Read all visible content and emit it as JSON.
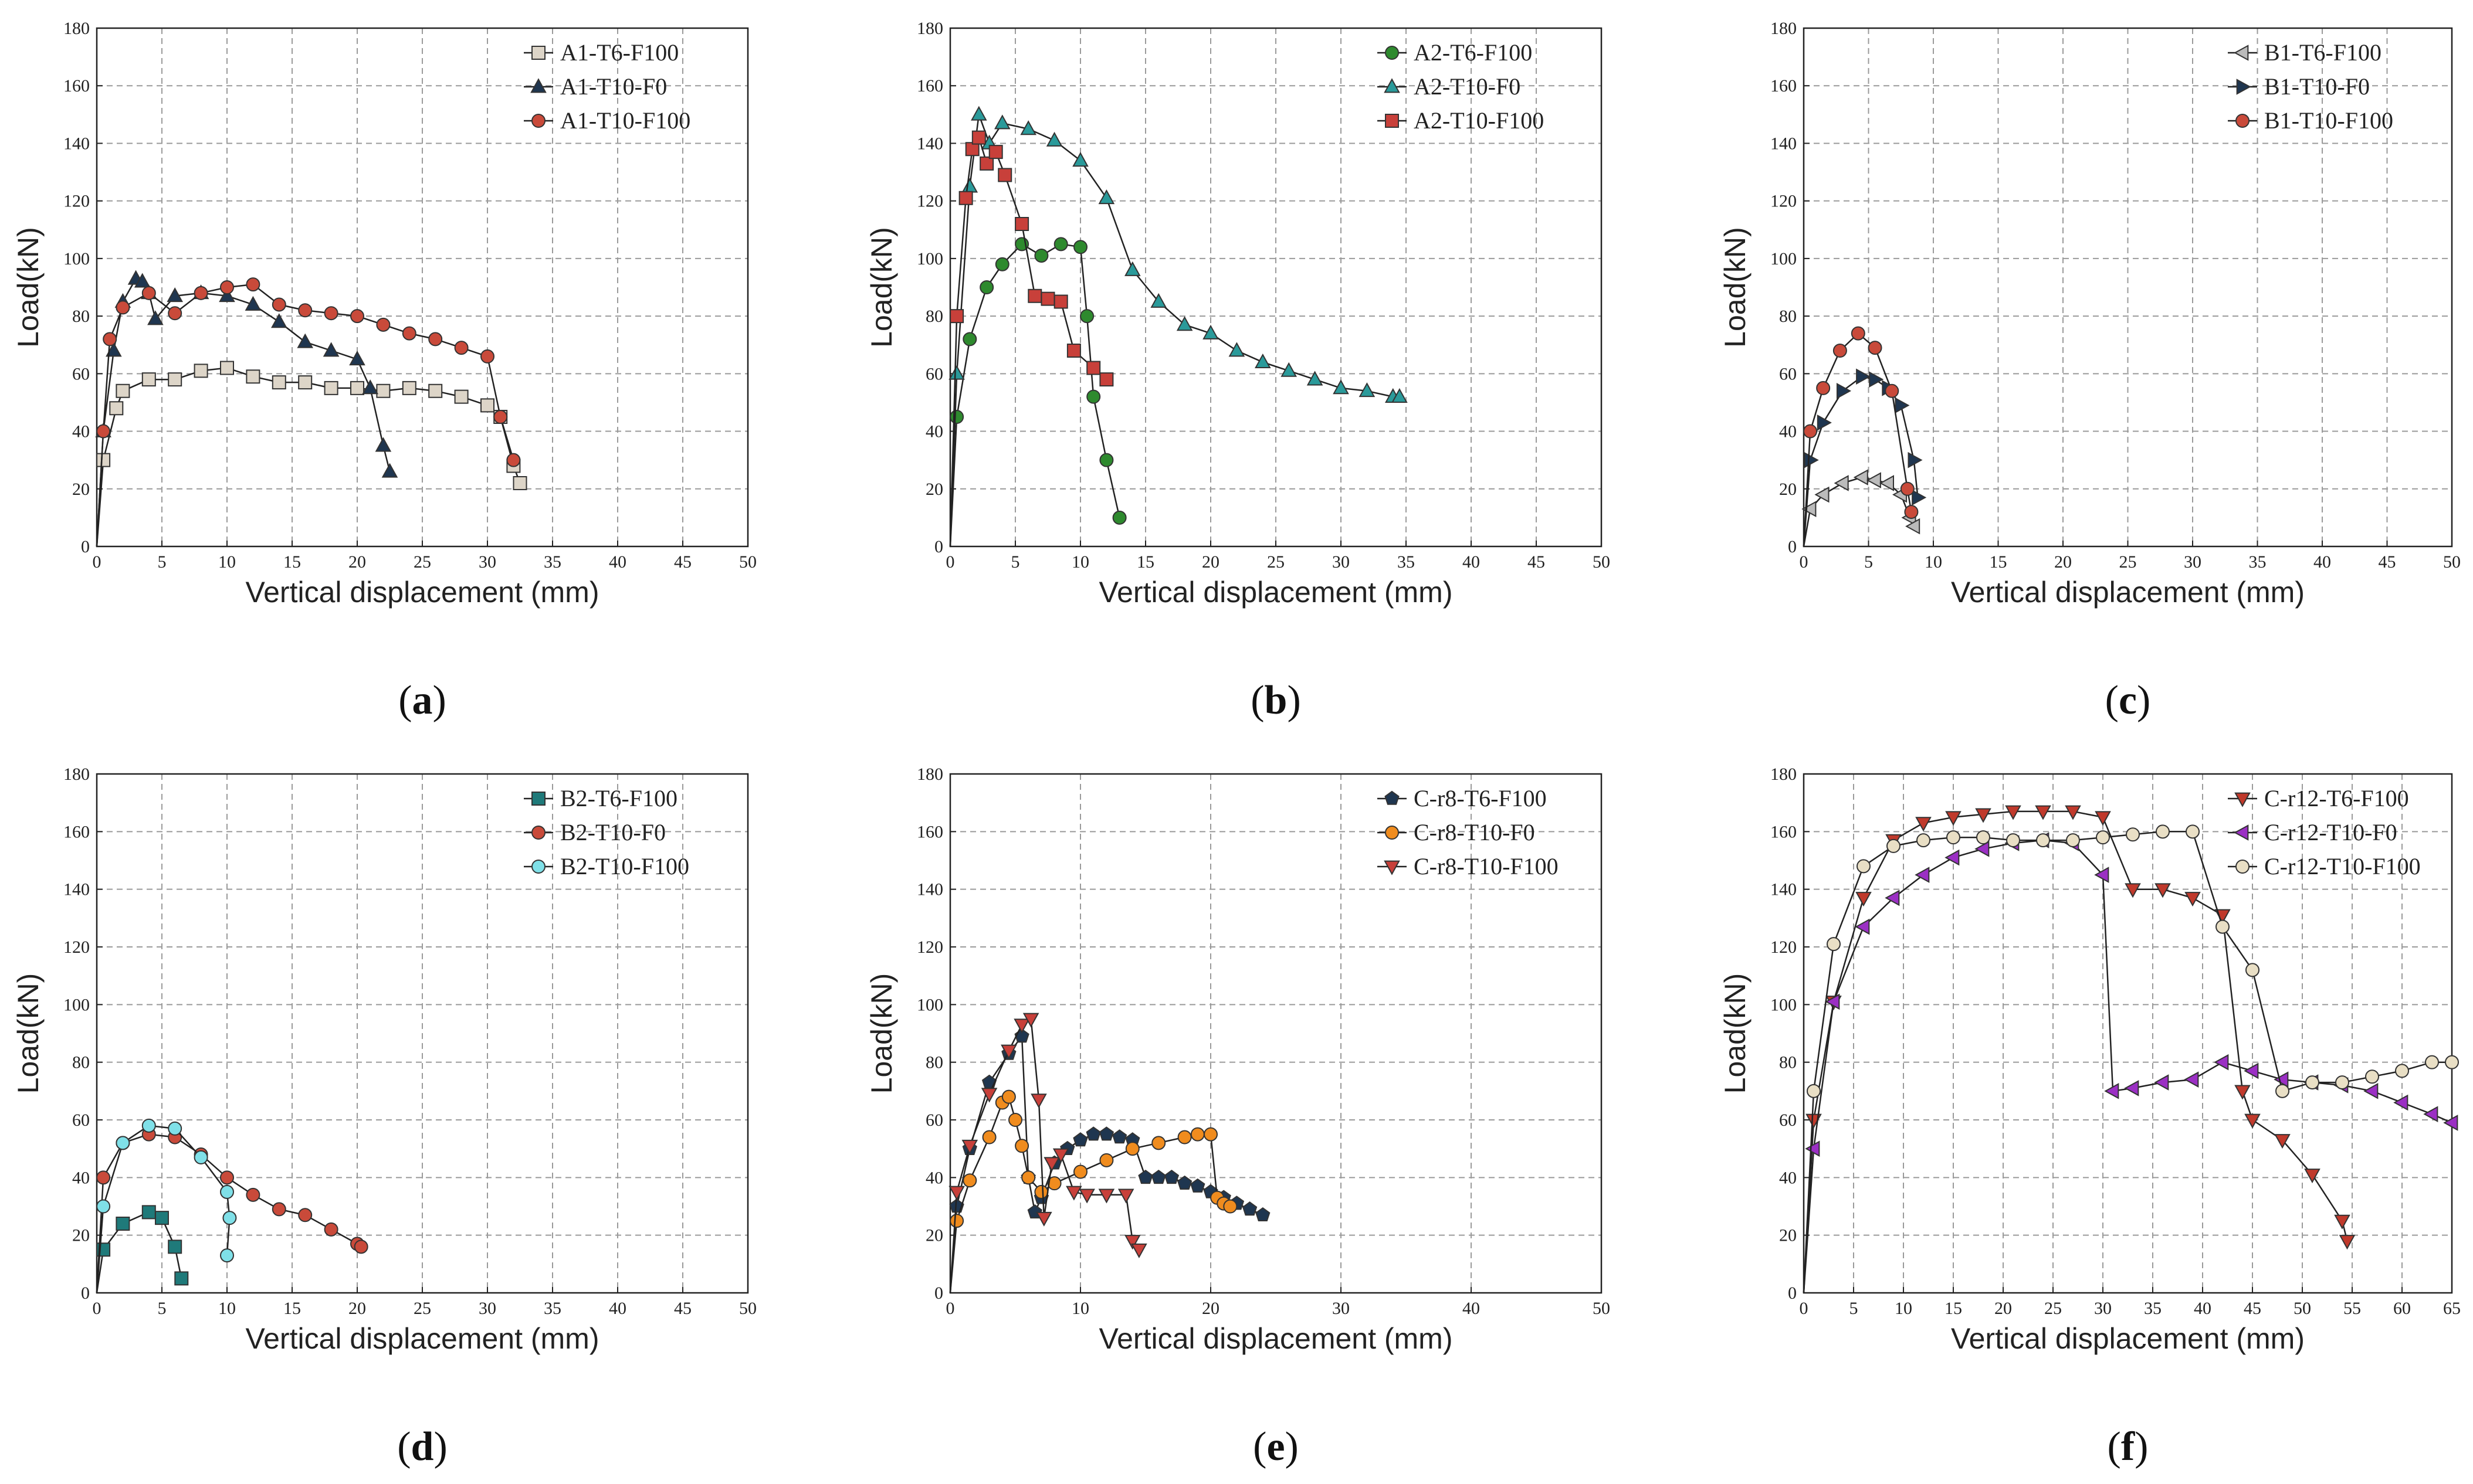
{
  "figure": {
    "title": ""
  },
  "chart_data": [
    {
      "type": "line",
      "panel_label": "a",
      "xlabel": "Vertical displacement (mm)",
      "ylabel": "Load(kN)",
      "xlim": [
        0,
        50
      ],
      "ylim": [
        0,
        180
      ],
      "xticks": [
        "0",
        "5",
        "10",
        "15",
        "20",
        "25",
        "30",
        "35",
        "40",
        "45",
        "50"
      ],
      "yticks": [
        "0",
        "20",
        "40",
        "60",
        "80",
        "100",
        "120",
        "140",
        "160",
        "180"
      ],
      "grid": true,
      "legend_position": "top-right",
      "series": [
        {
          "name": "A1-T6-F100",
          "color": "#ddd5c8",
          "marker": "square",
          "x": [
            0,
            0.5,
            1.5,
            2,
            4,
            6,
            8,
            10,
            12,
            14,
            16,
            18,
            20,
            22,
            24,
            26,
            28,
            30,
            31,
            32,
            32.5
          ],
          "y": [
            0,
            30,
            48,
            54,
            58,
            58,
            61,
            62,
            59,
            57,
            57,
            55,
            55,
            54,
            55,
            54,
            52,
            49,
            45,
            28,
            22
          ]
        },
        {
          "name": "A1-T10-F0",
          "color": "#1f3650",
          "marker": "triangle-up",
          "x": [
            0,
            0.5,
            1.3,
            2,
            3,
            3.5,
            4,
            4.5,
            6,
            8,
            10,
            12,
            14,
            16,
            18,
            20,
            21,
            22,
            22.5
          ],
          "y": [
            0,
            40,
            68,
            85,
            93,
            92,
            88,
            79,
            87,
            88,
            87,
            84,
            78,
            71,
            68,
            65,
            55,
            35,
            26
          ]
        },
        {
          "name": "A1-T10-F100",
          "color": "#c94a3a",
          "marker": "circle",
          "x": [
            0,
            0.5,
            1,
            2,
            4,
            6,
            8,
            10,
            12,
            14,
            16,
            18,
            20,
            22,
            24,
            26,
            28,
            30,
            31,
            32
          ],
          "y": [
            0,
            40,
            72,
            83,
            88,
            81,
            88,
            90,
            91,
            84,
            82,
            81,
            80,
            77,
            74,
            72,
            69,
            66,
            45,
            30
          ]
        }
      ]
    },
    {
      "type": "line",
      "panel_label": "b",
      "xlabel": "Vertical displacement (mm)",
      "ylabel": "Load(kN)",
      "xlim": [
        0,
        50
      ],
      "ylim": [
        0,
        180
      ],
      "xticks": [
        "0",
        "5",
        "10",
        "15",
        "20",
        "25",
        "30",
        "35",
        "40",
        "45",
        "50"
      ],
      "yticks": [
        "0",
        "20",
        "40",
        "60",
        "80",
        "100",
        "120",
        "140",
        "160",
        "180"
      ],
      "grid": true,
      "legend_position": "top-right",
      "series": [
        {
          "name": "A2-T6-F100",
          "color": "#2e8a2e",
          "marker": "circle",
          "x": [
            0,
            0.5,
            1.5,
            2.8,
            4,
            5.5,
            7,
            8.5,
            10,
            10.5,
            11,
            12,
            13
          ],
          "y": [
            0,
            45,
            72,
            90,
            98,
            105,
            101,
            105,
            104,
            80,
            52,
            30,
            10
          ]
        },
        {
          "name": "A2-T10-F0",
          "color": "#2a9a9a",
          "marker": "triangle-up",
          "x": [
            0,
            0.5,
            1.5,
            2.2,
            3,
            4,
            6,
            8,
            10,
            12,
            14,
            16,
            18,
            20,
            22,
            24,
            26,
            28,
            30,
            32,
            34,
            34.5
          ],
          "y": [
            0,
            60,
            125,
            150,
            140,
            147,
            145,
            141,
            134,
            121,
            96,
            85,
            77,
            74,
            68,
            64,
            61,
            58,
            55,
            54,
            52,
            52
          ]
        },
        {
          "name": "A2-T10-F100",
          "color": "#c8403a",
          "marker": "square",
          "x": [
            0,
            0.5,
            1.2,
            1.7,
            2.2,
            2.8,
            3.5,
            4.2,
            5.5,
            6.5,
            7.5,
            8.5,
            9.5,
            11,
            12
          ],
          "y": [
            0,
            80,
            121,
            138,
            142,
            133,
            137,
            129,
            112,
            87,
            86,
            85,
            68,
            62,
            58
          ]
        }
      ]
    },
    {
      "type": "line",
      "panel_label": "c",
      "xlabel": "Vertical displacement (mm)",
      "ylabel": "Load(kN)",
      "xlim": [
        0,
        50
      ],
      "ylim": [
        0,
        180
      ],
      "xticks": [
        "0",
        "5",
        "10",
        "15",
        "20",
        "25",
        "30",
        "35",
        "40",
        "45",
        "50"
      ],
      "yticks": [
        "0",
        "20",
        "40",
        "60",
        "80",
        "100",
        "120",
        "140",
        "160",
        "180"
      ],
      "grid": true,
      "legend_position": "top-right",
      "series": [
        {
          "name": "B1-T6-F100",
          "color": "#bbbbbb",
          "marker": "triangle-left",
          "x": [
            0,
            0.5,
            1.5,
            3,
            4.5,
            5.5,
            6.5,
            7.5,
            8.2,
            8.5
          ],
          "y": [
            0,
            13,
            18,
            22,
            24,
            23,
            22,
            18,
            10,
            7
          ]
        },
        {
          "name": "B1-T10-F0",
          "color": "#1f3650",
          "marker": "triangle-right",
          "x": [
            0,
            0.5,
            1.5,
            3,
            4.5,
            5.5,
            6.5,
            7.5,
            8.5,
            8.8
          ],
          "y": [
            0,
            30,
            43,
            54,
            59,
            58,
            55,
            49,
            30,
            17
          ]
        },
        {
          "name": "B1-T10-F100",
          "color": "#c94a3a",
          "marker": "circle",
          "x": [
            0,
            0.5,
            1.5,
            2.8,
            4.2,
            5.5,
            6.8,
            8,
            8.3
          ],
          "y": [
            0,
            40,
            55,
            68,
            74,
            69,
            54,
            20,
            12
          ]
        }
      ]
    },
    {
      "type": "line",
      "panel_label": "d",
      "xlabel": "Vertical displacement (mm)",
      "ylabel": "Load(kN)",
      "xlim": [
        0,
        50
      ],
      "ylim": [
        0,
        180
      ],
      "xticks": [
        "0",
        "5",
        "10",
        "15",
        "20",
        "25",
        "30",
        "35",
        "40",
        "45",
        "50"
      ],
      "yticks": [
        "0",
        "20",
        "40",
        "60",
        "80",
        "100",
        "120",
        "140",
        "160",
        "180"
      ],
      "grid": true,
      "legend_position": "top-right",
      "series": [
        {
          "name": "B2-T6-F100",
          "color": "#1f7a7a",
          "marker": "square",
          "x": [
            0,
            0.5,
            2,
            4,
            5,
            6,
            6.5
          ],
          "y": [
            0,
            15,
            24,
            28,
            26,
            16,
            5
          ]
        },
        {
          "name": "B2-T10-F0",
          "color": "#c94a3a",
          "marker": "circle",
          "x": [
            0,
            0.5,
            2,
            4,
            6,
            8,
            10,
            12,
            14,
            16,
            18,
            20,
            20.3
          ],
          "y": [
            0,
            40,
            52,
            55,
            54,
            48,
            40,
            34,
            29,
            27,
            22,
            17,
            16
          ]
        },
        {
          "name": "B2-T10-F100",
          "color": "#7fe0e8",
          "marker": "circle",
          "x": [
            0,
            0.5,
            2,
            4,
            6,
            8,
            10,
            10.2,
            10
          ],
          "y": [
            0,
            30,
            52,
            58,
            57,
            47,
            35,
            26,
            13
          ]
        }
      ]
    },
    {
      "type": "line",
      "panel_label": "e",
      "xlabel": "Vertical displacement (mm)",
      "ylabel": "Load(kN)",
      "xlim": [
        0,
        50
      ],
      "ylim": [
        0,
        180
      ],
      "xticks": [
        "0",
        "10",
        "20",
        "30",
        "40",
        "50"
      ],
      "yticks": [
        "0",
        "20",
        "40",
        "60",
        "80",
        "100",
        "120",
        "140",
        "160",
        "180"
      ],
      "grid": true,
      "legend_position": "top-right",
      "series": [
        {
          "name": "C-r8-T6-F100",
          "color": "#1f3650",
          "marker": "pentagon",
          "x": [
            0,
            0.5,
            1.5,
            3,
            4.5,
            5.5,
            6,
            6.5,
            7,
            8,
            9,
            10,
            11,
            12,
            13,
            14,
            15,
            16,
            17,
            18,
            19,
            20,
            21,
            22,
            23,
            24
          ],
          "y": [
            0,
            30,
            50,
            73,
            83,
            89,
            40,
            28,
            33,
            45,
            50,
            53,
            55,
            55,
            54,
            53,
            40,
            40,
            40,
            38,
            37,
            35,
            33,
            31,
            29,
            27
          ]
        },
        {
          "name": "C-r8-T10-F0",
          "color": "#f08c1e",
          "marker": "circle",
          "x": [
            0,
            0.5,
            1.5,
            3,
            4,
            4.5,
            5,
            5.5,
            6,
            7,
            8,
            10,
            12,
            14,
            16,
            18,
            19,
            20,
            20.5,
            21,
            21.5
          ],
          "y": [
            0,
            25,
            39,
            54,
            66,
            68,
            60,
            51,
            40,
            35,
            38,
            42,
            46,
            50,
            52,
            54,
            55,
            55,
            33,
            31,
            30
          ]
        },
        {
          "name": "C-r8-T10-F100",
          "color": "#c8403a",
          "marker": "triangle-down",
          "x": [
            0,
            0.5,
            1.5,
            3,
            4.5,
            5.5,
            6.2,
            6.8,
            7.2,
            7.8,
            8.5,
            9.5,
            10.5,
            12,
            13.5,
            14,
            14.5
          ],
          "y": [
            0,
            35,
            51,
            69,
            84,
            93,
            95,
            67,
            26,
            45,
            48,
            35,
            34,
            34,
            34,
            18,
            15
          ]
        }
      ]
    },
    {
      "type": "line",
      "panel_label": "f",
      "xlabel": "Vertical displacement (mm)",
      "ylabel": "Load(kN)",
      "xlim": [
        0,
        65
      ],
      "ylim": [
        0,
        180
      ],
      "xticks": [
        "0",
        "5",
        "10",
        "15",
        "20",
        "25",
        "30",
        "35",
        "40",
        "45",
        "50",
        "55",
        "60",
        "65"
      ],
      "yticks": [
        "0",
        "20",
        "40",
        "60",
        "80",
        "100",
        "120",
        "140",
        "160",
        "180"
      ],
      "grid": true,
      "legend_position": "top-right",
      "series": [
        {
          "name": "C-r12-T6-F100",
          "color": "#c0392b",
          "marker": "triangle-down",
          "x": [
            0,
            1,
            3,
            6,
            9,
            12,
            15,
            18,
            21,
            24,
            27,
            30,
            33,
            36,
            39,
            42,
            44,
            45,
            48,
            51,
            54,
            54.5
          ],
          "y": [
            0,
            60,
            101,
            137,
            157,
            163,
            165,
            166,
            167,
            167,
            167,
            165,
            140,
            140,
            137,
            131,
            70,
            60,
            53,
            41,
            25,
            18
          ]
        },
        {
          "name": "C-r12-T10-F0",
          "color": "#9b2fc4",
          "marker": "triangle-left",
          "x": [
            0,
            1,
            3,
            6,
            9,
            12,
            15,
            18,
            21,
            24,
            27,
            30,
            31,
            33,
            36,
            39,
            42,
            45,
            48,
            51,
            54,
            57,
            60,
            63,
            65
          ],
          "y": [
            0,
            50,
            101,
            127,
            137,
            145,
            151,
            154,
            156,
            157,
            156,
            145,
            70,
            71,
            73,
            74,
            80,
            77,
            74,
            73,
            72,
            70,
            66,
            62,
            59
          ]
        },
        {
          "name": "C-r12-T10-F100",
          "color": "#e9dfc5",
          "marker": "circle",
          "x": [
            0,
            1,
            3,
            6,
            9,
            12,
            15,
            18,
            21,
            24,
            27,
            30,
            33,
            36,
            39,
            42,
            45,
            48,
            51,
            54,
            57,
            60,
            63,
            65
          ],
          "y": [
            0,
            70,
            121,
            148,
            155,
            157,
            158,
            158,
            157,
            157,
            157,
            158,
            159,
            160,
            160,
            127,
            112,
            70,
            73,
            73,
            75,
            77,
            80,
            80
          ]
        }
      ]
    }
  ]
}
